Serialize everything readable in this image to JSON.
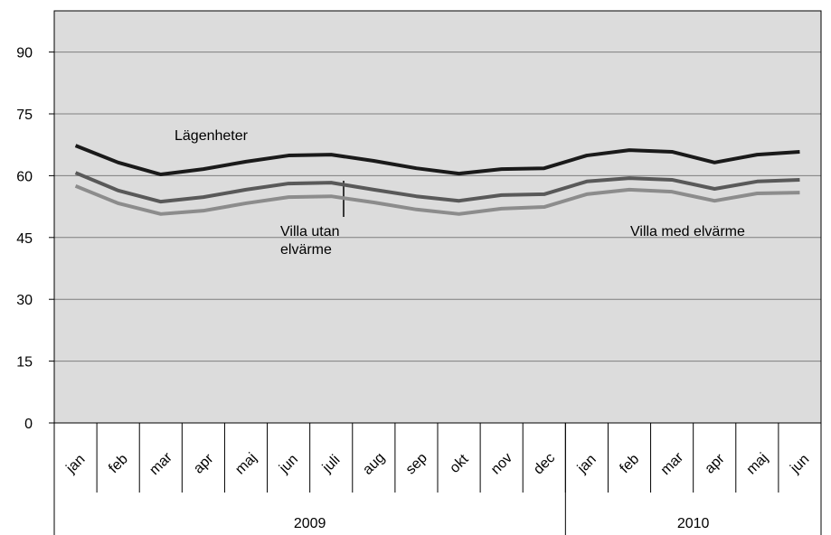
{
  "chart_data": {
    "type": "line",
    "groups": [
      {
        "label": "2009",
        "categories": [
          "jan",
          "feb",
          "mar",
          "apr",
          "maj",
          "jun",
          "juli",
          "aug",
          "sep",
          "okt",
          "nov",
          "dec"
        ]
      },
      {
        "label": "2010",
        "categories": [
          "jan",
          "feb",
          "mar",
          "apr",
          "maj",
          "jun"
        ]
      }
    ],
    "series": [
      {
        "name": "Lägenheter",
        "color": "#1a1a1a",
        "values": [
          67.3,
          63.2,
          60.3,
          61.6,
          63.4,
          64.9,
          65.1,
          63.6,
          61.8,
          60.5,
          61.6,
          61.8,
          64.9,
          66.2,
          65.8,
          63.2,
          65.1,
          65.8
        ]
      },
      {
        "name": "Villa utan elvärme",
        "color": "#595959",
        "values": [
          60.7,
          56.4,
          53.7,
          54.8,
          56.6,
          58.1,
          58.3,
          56.6,
          55.0,
          53.9,
          55.3,
          55.5,
          58.6,
          59.4,
          59.0,
          56.8,
          58.6,
          59.0
        ]
      },
      {
        "name": "Villa med elvärme",
        "color": "#8c8c8c",
        "values": [
          57.5,
          53.3,
          50.7,
          51.5,
          53.3,
          54.8,
          55.0,
          53.5,
          51.8,
          50.7,
          52.0,
          52.4,
          55.5,
          56.6,
          56.1,
          53.9,
          55.7,
          55.9
        ]
      }
    ],
    "ylim": [
      0,
      100
    ],
    "yticks": [
      0,
      15,
      30,
      45,
      60,
      75,
      90
    ],
    "grid": true
  }
}
